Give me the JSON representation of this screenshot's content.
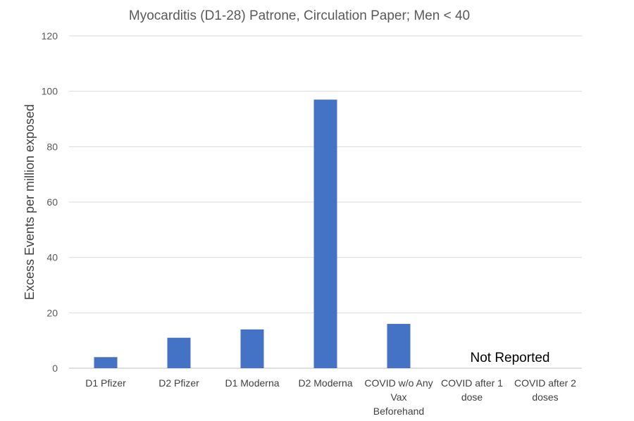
{
  "chart_data": {
    "type": "bar",
    "title": "Myocarditis (D1-28) Patrone, Circulation Paper; Men < 40",
    "ylabel": "Excess Events per million exposed",
    "xlabel": "",
    "ylim": [
      0,
      120
    ],
    "yticks": [
      0,
      20,
      40,
      60,
      80,
      100,
      120
    ],
    "grid": true,
    "categories": [
      [
        "D1 Pfizer"
      ],
      [
        "D2 Pfizer"
      ],
      [
        "D1 Moderna"
      ],
      [
        "D2 Moderna"
      ],
      [
        "COVID w/o Any",
        "Vax",
        "Beforehand"
      ],
      [
        "COVID after 1",
        "dose"
      ],
      [
        "COVID after 2",
        "doses"
      ]
    ],
    "values": [
      4,
      11,
      14,
      97,
      16,
      null,
      null
    ],
    "bar_color": "#4472c4",
    "annotations": [
      "Not Reported"
    ]
  }
}
